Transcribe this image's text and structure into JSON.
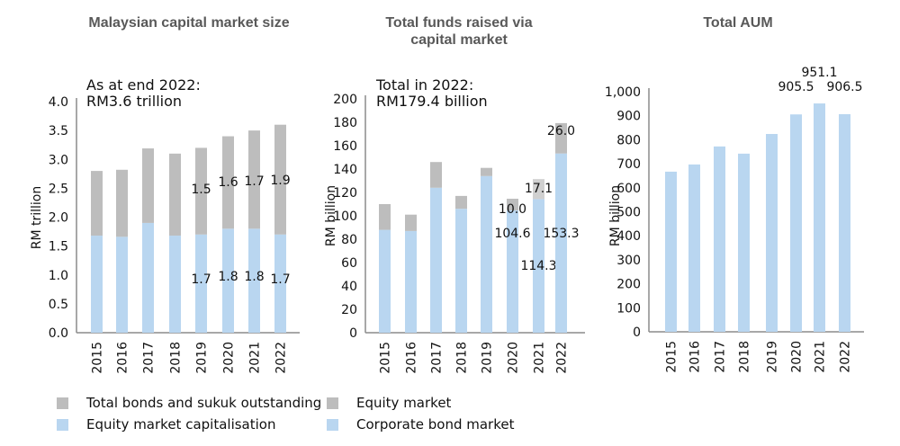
{
  "colors": {
    "grey": "#bdbdbd",
    "light_grey": "#d0d0d0",
    "blue": "#b9d6f0",
    "axis": "#8c8c8c",
    "title": "#595959"
  },
  "chart_data": [
    {
      "type": "bar",
      "stacked": true,
      "title": "Malaysian capital market size",
      "annotation": "As at end 2022:\nRM3.6 trillion",
      "xlabel": "",
      "ylabel": "RM trillion",
      "ylim": [
        0,
        4.0
      ],
      "yticks": [
        "0.0",
        "0.5",
        "1.0",
        "1.5",
        "2.0",
        "2.5",
        "3.0",
        "3.5",
        "4.0"
      ],
      "ytick_values": [
        0,
        0.5,
        1.0,
        1.5,
        2.0,
        2.5,
        3.0,
        3.5,
        4.0
      ],
      "categories": [
        "2015",
        "2016",
        "2017",
        "2018",
        "2019",
        "2020",
        "2021",
        "2022"
      ],
      "series": [
        {
          "name": "Equity market capitalisation",
          "color_key": "blue",
          "values": [
            1.68,
            1.66,
            1.9,
            1.68,
            1.7,
            1.8,
            1.8,
            1.7
          ],
          "labels": [
            "",
            "",
            "",
            "",
            "1.7",
            "1.8",
            "1.8",
            "1.7"
          ]
        },
        {
          "name": "Total bonds and sukuk outstanding",
          "color_key": "grey",
          "values": [
            1.12,
            1.16,
            1.29,
            1.42,
            1.5,
            1.6,
            1.7,
            1.9
          ],
          "labels": [
            "",
            "",
            "",
            "",
            "1.5",
            "1.6",
            "1.7",
            "1.9"
          ]
        }
      ],
      "grid": false
    },
    {
      "type": "bar",
      "stacked": true,
      "title": "Total funds raised via\ncapital market",
      "annotation": "Total in 2022:\nRM179.4 billion",
      "xlabel": "",
      "ylabel": "RM billion",
      "ylim": [
        0,
        200
      ],
      "yticks": [
        "0",
        "20",
        "40",
        "60",
        "80",
        "100",
        "120",
        "140",
        "160",
        "180",
        "200"
      ],
      "ytick_values": [
        0,
        20,
        40,
        60,
        80,
        100,
        120,
        140,
        160,
        180,
        200
      ],
      "categories": [
        "2015",
        "2016",
        "2017",
        "2018",
        "2019",
        "2020",
        "2021",
        "2022"
      ],
      "series": [
        {
          "name": "Corporate bond market",
          "color_key": "blue",
          "values": [
            88,
            87,
            124,
            106,
            134,
            104.6,
            114.3,
            153.3
          ],
          "labels": [
            "",
            "",
            "",
            "",
            "",
            "104.6",
            "114.3",
            "153.3"
          ]
        },
        {
          "name": "Equity market",
          "color_key": "grey",
          "values": [
            22,
            14,
            22,
            11,
            7,
            10.0,
            17.1,
            26.0
          ],
          "labels": [
            "",
            "",
            "",
            "",
            "",
            "10.0",
            "17.1",
            "26.0"
          ]
        }
      ],
      "grid": false
    },
    {
      "type": "bar",
      "stacked": false,
      "title": "Total AUM",
      "annotation": "",
      "xlabel": "",
      "ylabel": "RM billion",
      "ylim": [
        0,
        1000
      ],
      "yticks": [
        "0",
        "100",
        "200",
        "300",
        "400",
        "500",
        "600",
        "700",
        "800",
        "900",
        "1,000"
      ],
      "ytick_values": [
        0,
        100,
        200,
        300,
        400,
        500,
        600,
        700,
        800,
        900,
        1000
      ],
      "categories": [
        "2015",
        "2016",
        "2017",
        "2018",
        "2019",
        "2020",
        "2021",
        "2022"
      ],
      "series": [
        {
          "name": "Total AUM",
          "color_key": "blue",
          "values": [
            667,
            697,
            772,
            742,
            824,
            905.5,
            951.1,
            906.5
          ],
          "labels": [
            "",
            "",
            "",
            "",
            "",
            "905.5",
            "951.1",
            "906.5"
          ]
        }
      ],
      "grid": false
    }
  ],
  "legends": [
    {
      "items": [
        {
          "label": "Total bonds and sukuk outstanding",
          "color_key": "grey"
        },
        {
          "label": "Equity market capitalisation",
          "color_key": "blue"
        }
      ]
    },
    {
      "items": [
        {
          "label": "Equity market",
          "color_key": "grey"
        },
        {
          "label": "Corporate bond market",
          "color_key": "blue"
        }
      ]
    }
  ]
}
